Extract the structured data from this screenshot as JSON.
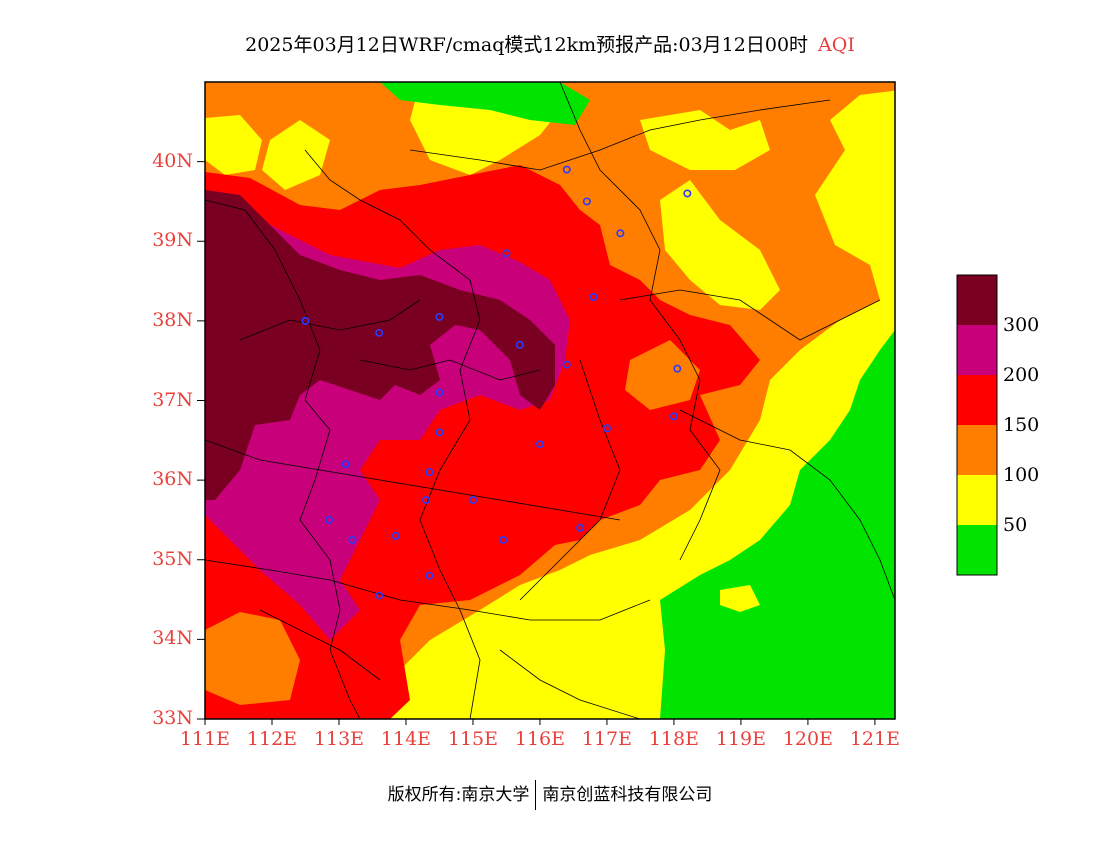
{
  "header": {
    "title": "2025年03月12日WRF/cmaq模式12km预报产品:03月12日00时",
    "variable": "AQI"
  },
  "axes": {
    "lat_labels": [
      "40N",
      "39N",
      "38N",
      "37N",
      "36N",
      "35N",
      "34N",
      "33N"
    ],
    "lat_values": [
      40,
      39,
      38,
      37,
      36,
      35,
      34,
      33
    ],
    "lon_labels": [
      "111E",
      "112E",
      "113E",
      "114E",
      "115E",
      "116E",
      "117E",
      "118E",
      "119E",
      "120E",
      "121E"
    ],
    "lon_values": [
      111,
      112,
      113,
      114,
      115,
      116,
      117,
      118,
      119,
      120,
      121
    ],
    "lon_range": [
      111,
      121.3
    ],
    "lat_range": [
      33,
      41
    ]
  },
  "legend": {
    "ticks": [
      "300",
      "200",
      "150",
      "100",
      "50"
    ],
    "colors": [
      "#00e400",
      "#ffff00",
      "#ff7e00",
      "#ff0000",
      "#c8007a",
      "#7a0022"
    ]
  },
  "footer": {
    "left": "版权所有:南京大学",
    "right": "南京创蓝科技有限公司"
  },
  "city_markers": [
    [
      116.4,
      39.9
    ],
    [
      116.7,
      39.5
    ],
    [
      117.2,
      39.1
    ],
    [
      118.2,
      39.6
    ],
    [
      115.5,
      38.85
    ],
    [
      116.8,
      38.3
    ],
    [
      112.5,
      38.0
    ],
    [
      113.6,
      37.85
    ],
    [
      114.5,
      38.05
    ],
    [
      115.7,
      37.7
    ],
    [
      116.4,
      37.45
    ],
    [
      114.5,
      37.1
    ],
    [
      114.5,
      36.6
    ],
    [
      116.0,
      36.45
    ],
    [
      117.0,
      36.65
    ],
    [
      118.05,
      37.4
    ],
    [
      118.0,
      36.8
    ],
    [
      113.1,
      36.2
    ],
    [
      114.35,
      36.1
    ],
    [
      114.3,
      35.75
    ],
    [
      115.0,
      35.75
    ],
    [
      112.85,
      35.5
    ],
    [
      113.2,
      35.25
    ],
    [
      113.85,
      35.3
    ],
    [
      115.45,
      35.25
    ],
    [
      116.6,
      35.4
    ],
    [
      114.35,
      34.8
    ],
    [
      113.6,
      34.55
    ]
  ]
}
